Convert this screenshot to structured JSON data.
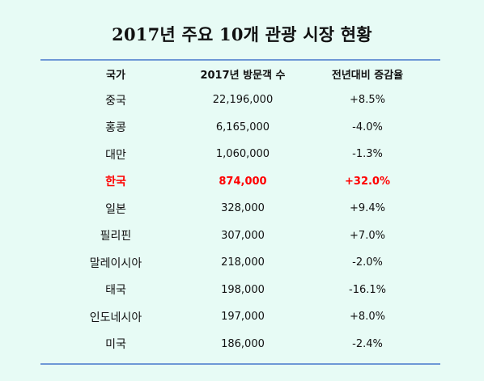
{
  "header": {
    "title": "2017년 주요 10개 관광 시장 현황"
  },
  "chart_data": {
    "type": "table",
    "title": "2017년 주요 10개 관광 시장 현황",
    "columns": [
      "국가",
      "2017년 방문객 수",
      "전년대비 증감율"
    ],
    "rows": [
      {
        "country": "중국",
        "visitors": "22,196,000",
        "change": "+8.5%",
        "highlight": false
      },
      {
        "country": "홍콩",
        "visitors": "6,165,000",
        "change": "-4.0%",
        "highlight": false
      },
      {
        "country": "대만",
        "visitors": "1,060,000",
        "change": "-1.3%",
        "highlight": false
      },
      {
        "country": "한국",
        "visitors": "874,000",
        "change": "+32.0%",
        "highlight": true
      },
      {
        "country": "일본",
        "visitors": "328,000",
        "change": "+9.4%",
        "highlight": false
      },
      {
        "country": "필리핀",
        "visitors": "307,000",
        "change": "+7.0%",
        "highlight": false
      },
      {
        "country": "말레이시아",
        "visitors": "218,000",
        "change": "-2.0%",
        "highlight": false
      },
      {
        "country": "태국",
        "visitors": "198,000",
        "change": "-16.1%",
        "highlight": false
      },
      {
        "country": "인도네시아",
        "visitors": "197,000",
        "change": "+8.0%",
        "highlight": false
      },
      {
        "country": "미국",
        "visitors": "186,000",
        "change": "-2.4%",
        "highlight": false
      }
    ],
    "highlight_color": "#ff0000",
    "rule_color": "#6e98d6"
  }
}
